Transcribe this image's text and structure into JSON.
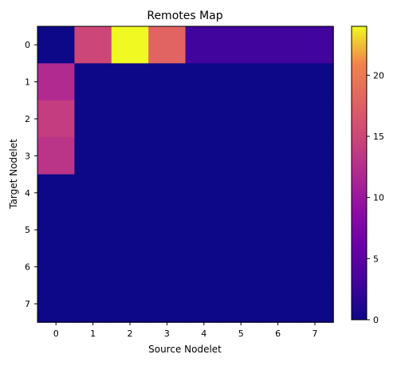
{
  "chart_data": {
    "type": "heatmap",
    "title": "Remotes Map",
    "xlabel": "Source Nodelet",
    "ylabel": "Target Nodelet",
    "x_categories": [
      "0",
      "1",
      "2",
      "3",
      "4",
      "5",
      "6",
      "7"
    ],
    "y_categories": [
      "0",
      "1",
      "2",
      "3",
      "4",
      "5",
      "6",
      "7"
    ],
    "values": [
      [
        0,
        15,
        24,
        18,
        3,
        3,
        3,
        3
      ],
      [
        12,
        0,
        0,
        0,
        0,
        0,
        0,
        0
      ],
      [
        14,
        0,
        0,
        0,
        0,
        0,
        0,
        0
      ],
      [
        13,
        0,
        0,
        0,
        0,
        0,
        0,
        0
      ],
      [
        0,
        0,
        0,
        0,
        0,
        0,
        0,
        0
      ],
      [
        0,
        0,
        0,
        0,
        0,
        0,
        0,
        0
      ],
      [
        0,
        0,
        0,
        0,
        0,
        0,
        0,
        0
      ],
      [
        0,
        0,
        0,
        0,
        0,
        0,
        0,
        0
      ]
    ],
    "colormap": "plasma",
    "colorbar": {
      "vmin": 0,
      "vmax": 24,
      "ticks": [
        "0",
        "5",
        "10",
        "15",
        "20"
      ]
    },
    "grid": false
  }
}
